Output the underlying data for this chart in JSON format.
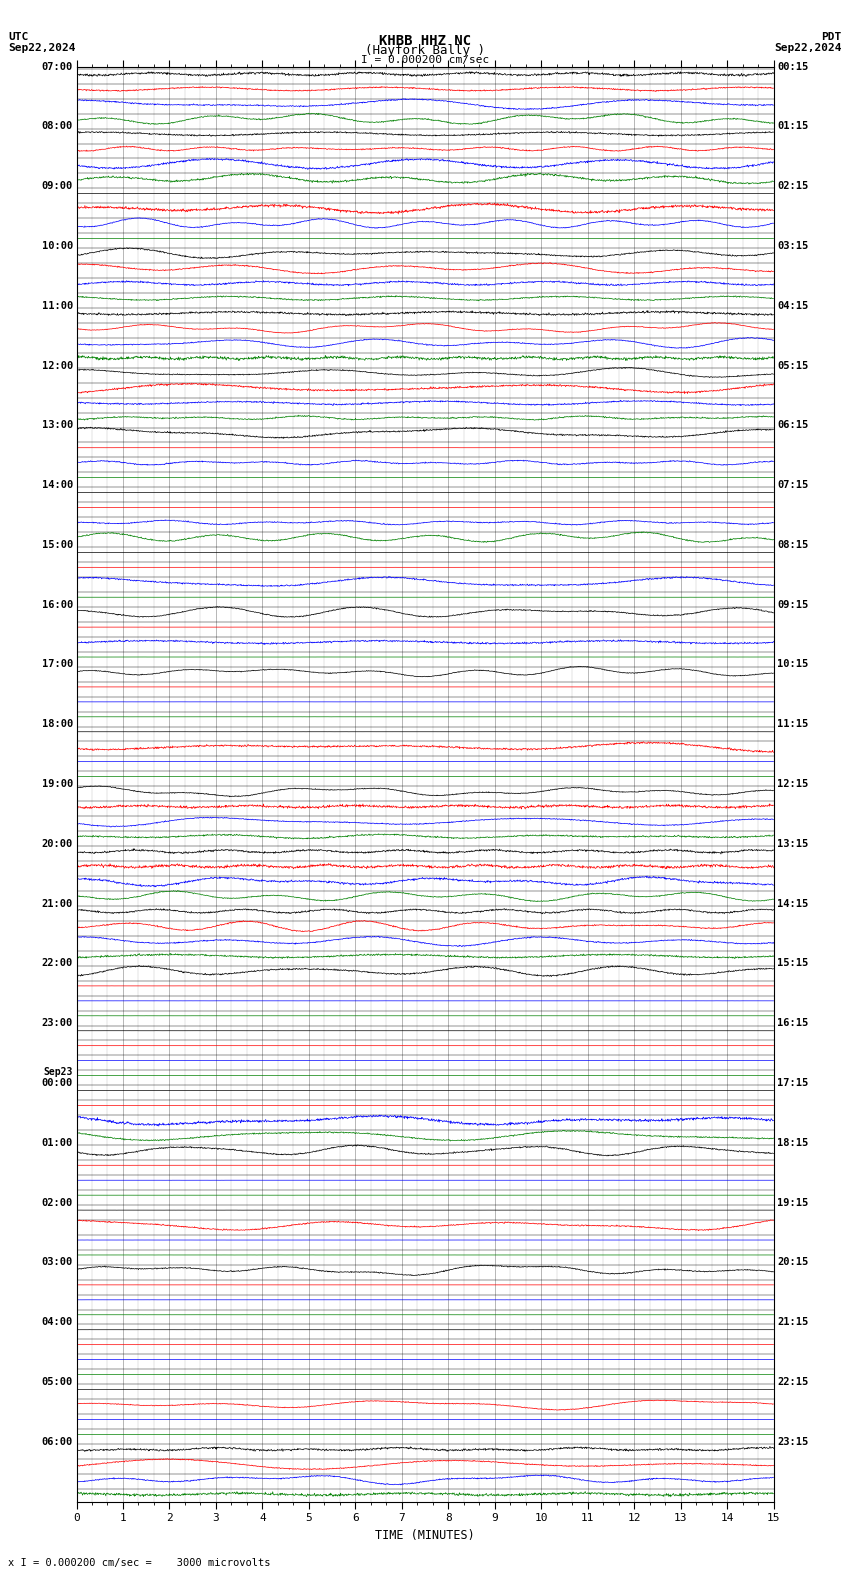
{
  "title_line1": "KHBB HHZ NC",
  "title_line2": "(Hayfork Bally )",
  "scale_text": "I = 0.000200 cm/sec",
  "utc_label": "UTC",
  "utc_date": "Sep22,2024",
  "pdt_label": "PDT",
  "pdt_date": "Sep22,2024",
  "bottom_label": "x I = 0.000200 cm/sec =    3000 microvolts",
  "xlabel": "TIME (MINUTES)",
  "bg_color": "#ffffff",
  "grid_color": "#808080",
  "trace_colors": [
    "black",
    "red",
    "blue",
    "green"
  ],
  "minutes": 15,
  "n_hours": 24,
  "labels_left": [
    [
      0,
      "07:00",
      false
    ],
    [
      4,
      "08:00",
      false
    ],
    [
      8,
      "09:00",
      false
    ],
    [
      12,
      "10:00",
      false
    ],
    [
      16,
      "11:00",
      false
    ],
    [
      20,
      "12:00",
      false
    ],
    [
      24,
      "13:00",
      false
    ],
    [
      28,
      "14:00",
      false
    ],
    [
      32,
      "15:00",
      false
    ],
    [
      36,
      "16:00",
      false
    ],
    [
      40,
      "17:00",
      false
    ],
    [
      44,
      "18:00",
      false
    ],
    [
      48,
      "19:00",
      false
    ],
    [
      52,
      "20:00",
      false
    ],
    [
      56,
      "21:00",
      false
    ],
    [
      60,
      "22:00",
      false
    ],
    [
      64,
      "23:00",
      false
    ],
    [
      68,
      "Sep23",
      true
    ],
    [
      68,
      "00:00",
      false
    ],
    [
      72,
      "01:00",
      false
    ],
    [
      76,
      "02:00",
      false
    ],
    [
      80,
      "03:00",
      false
    ],
    [
      84,
      "04:00",
      false
    ],
    [
      88,
      "05:00",
      false
    ],
    [
      92,
      "06:00",
      false
    ]
  ],
  "labels_right": [
    [
      0,
      "00:15"
    ],
    [
      4,
      "01:15"
    ],
    [
      8,
      "02:15"
    ],
    [
      12,
      "03:15"
    ],
    [
      16,
      "04:15"
    ],
    [
      20,
      "05:15"
    ],
    [
      24,
      "06:15"
    ],
    [
      28,
      "07:15"
    ],
    [
      32,
      "08:15"
    ],
    [
      36,
      "09:15"
    ],
    [
      40,
      "10:15"
    ],
    [
      44,
      "11:15"
    ],
    [
      48,
      "12:15"
    ],
    [
      52,
      "13:15"
    ],
    [
      56,
      "14:15"
    ],
    [
      60,
      "15:15"
    ],
    [
      64,
      "16:15"
    ],
    [
      68,
      "17:15"
    ],
    [
      72,
      "18:15"
    ],
    [
      76,
      "19:15"
    ],
    [
      80,
      "20:15"
    ],
    [
      84,
      "21:15"
    ],
    [
      88,
      "22:15"
    ],
    [
      92,
      "23:15"
    ]
  ]
}
